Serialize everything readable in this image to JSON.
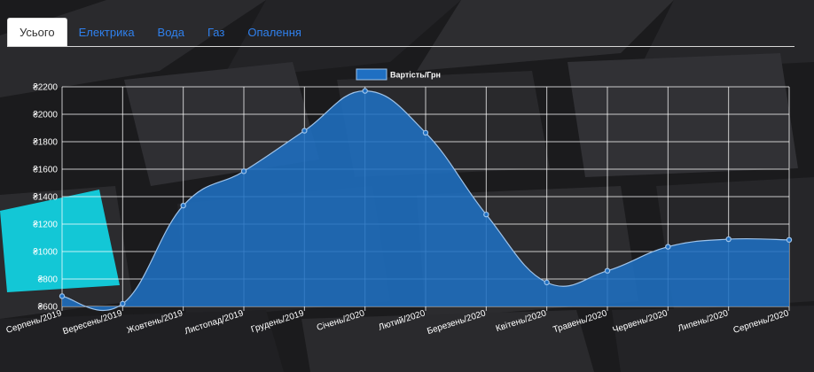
{
  "tabs": [
    {
      "label": "Усього",
      "active": true
    },
    {
      "label": "Електрика",
      "active": false
    },
    {
      "label": "Вода",
      "active": false
    },
    {
      "label": "Газ",
      "active": false
    },
    {
      "label": "Опалення",
      "active": false
    }
  ],
  "colors": {
    "tab_link": "#2f80ed",
    "area_fill": "#1f6fc2",
    "line": "#9ec3ea",
    "grid": "#ffffff",
    "text": "#ffffff",
    "background": "#1b1b1d",
    "cyan_block": "#13c7d6"
  },
  "chart_data": {
    "type": "area",
    "title": "",
    "xlabel": "",
    "ylabel": "",
    "legend_position": "top-center",
    "grid": true,
    "ylim": [
      600,
      2200
    ],
    "y_ticks": [
      "₴600",
      "₴800",
      "₴1000",
      "₴1200",
      "₴1400",
      "₴1600",
      "₴1800",
      "₴2000",
      "₴2200"
    ],
    "y_tick_values": [
      600,
      800,
      1000,
      1200,
      1400,
      1600,
      1800,
      2000,
      2200
    ],
    "categories": [
      "Серпень/2019",
      "Вересень/2019",
      "Жовтень/2019",
      "Листопад/2019",
      "Грудень/2019",
      "Січень/2020",
      "Лютий/2020",
      "Березень/2020",
      "Квітень/2020",
      "Травень/2020",
      "Червень/2020",
      "Липень/2020",
      "Серпень/2020"
    ],
    "series": [
      {
        "name": "Вартість/Грн",
        "values": [
          675,
          620,
          1335,
          1585,
          1880,
          2170,
          1865,
          1270,
          775,
          860,
          1035,
          1090,
          1085
        ]
      }
    ]
  }
}
